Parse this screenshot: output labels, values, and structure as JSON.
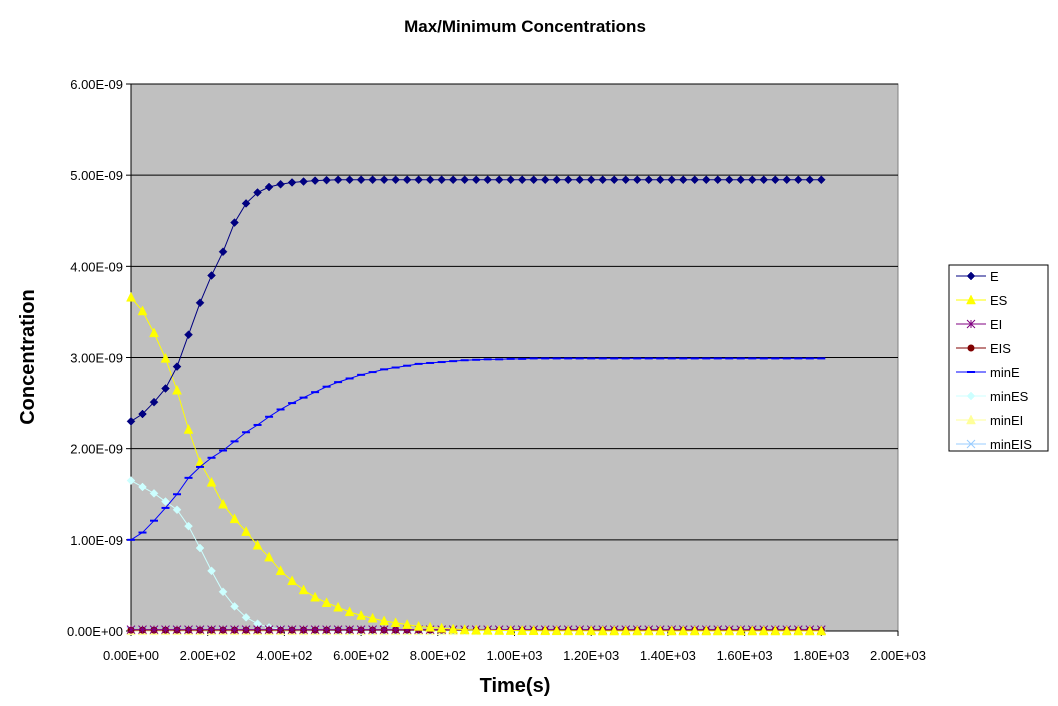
{
  "chart_data": {
    "type": "line",
    "title": "Max/Minimum Concentrations",
    "xlabel": "Time(s)",
    "ylabel": "Concentration",
    "xlim": [
      0,
      2000
    ],
    "ylim": [
      0,
      6e-09
    ],
    "x_ticks": [
      0,
      200,
      400,
      600,
      800,
      1000,
      1200,
      1400,
      1600,
      1800,
      2000
    ],
    "x_tick_labels": [
      "0.00E+00",
      "2.00E+02",
      "4.00E+02",
      "6.00E+02",
      "8.00E+02",
      "1.00E+03",
      "1.20E+03",
      "1.40E+03",
      "1.60E+03",
      "1.80E+03",
      "2.00E+03"
    ],
    "y_ticks": [
      0,
      1e-09,
      2e-09,
      3e-09,
      4e-09,
      5e-09,
      6e-09
    ],
    "y_tick_labels": [
      "0.00E+00",
      "1.00E-09",
      "2.00E-09",
      "3.00E-09",
      "4.00E-09",
      "5.00E-09",
      "6.00E-09"
    ],
    "grid": "horizontal",
    "legend_position": "right",
    "plot_background": "#C0C0C0",
    "x_step": 30,
    "x_count": 61,
    "series": [
      {
        "name": "E",
        "color": "#000080",
        "marker": "diamond",
        "values": [
          2.3e-09,
          2.38e-09,
          2.51e-09,
          2.66e-09,
          2.9e-09,
          3.25e-09,
          3.6e-09,
          3.9e-09,
          4.16e-09,
          4.48e-09,
          4.69e-09,
          4.81e-09,
          4.87e-09,
          4.9e-09,
          4.92e-09,
          4.93e-09,
          4.94e-09,
          4.945e-09,
          4.95e-09,
          4.95e-09,
          4.95e-09,
          4.95e-09,
          4.95e-09,
          4.95e-09,
          4.95e-09,
          4.95e-09,
          4.95e-09,
          4.95e-09,
          4.95e-09,
          4.95e-09,
          4.95e-09,
          4.95e-09,
          4.95e-09,
          4.95e-09,
          4.95e-09,
          4.95e-09,
          4.95e-09,
          4.95e-09,
          4.95e-09,
          4.95e-09,
          4.95e-09,
          4.95e-09,
          4.95e-09,
          4.95e-09,
          4.95e-09,
          4.95e-09,
          4.95e-09,
          4.95e-09,
          4.95e-09,
          4.95e-09,
          4.95e-09,
          4.95e-09,
          4.95e-09,
          4.95e-09,
          4.95e-09,
          4.95e-09,
          4.95e-09,
          4.95e-09,
          4.95e-09,
          4.95e-09,
          4.95e-09
        ]
      },
      {
        "name": "ES",
        "color": "#FFFF00",
        "marker": "triangle",
        "values": [
          3.66e-09,
          3.51e-09,
          3.27e-09,
          2.99e-09,
          2.64e-09,
          2.21e-09,
          1.85e-09,
          1.63e-09,
          1.39e-09,
          1.23e-09,
          1.09e-09,
          9.4e-10,
          8.1e-10,
          6.6e-10,
          5.5e-10,
          4.5e-10,
          3.7e-10,
          3.1e-10,
          2.6e-10,
          2.1e-10,
          1.7e-10,
          1.4e-10,
          1.1e-10,
          9e-11,
          7e-11,
          5e-11,
          4e-11,
          3e-11,
          2e-11,
          1.5e-11,
          1e-11,
          8e-12,
          6e-12,
          5e-12,
          4e-12,
          3e-12,
          2e-12,
          2e-12,
          1e-12,
          1e-12,
          1e-12,
          0,
          0,
          0,
          0,
          0,
          0,
          0,
          0,
          0,
          0,
          0,
          0,
          0,
          0,
          0,
          0,
          0,
          0,
          0,
          0
        ]
      },
      {
        "name": "EI",
        "color": "#800080",
        "marker": "star",
        "values": [
          1.5e-11,
          1.5e-11,
          1.5e-11,
          1.5e-11,
          1.5e-11,
          1.5e-11,
          1.5e-11,
          1.5e-11,
          1.5e-11,
          1.5e-11,
          1.5e-11,
          1.5e-11,
          1.5e-11,
          1.5e-11,
          1.5e-11,
          1.5e-11,
          1.5e-11,
          1.5e-11,
          1.5e-11,
          1.5e-11,
          1.5e-11,
          1.5e-11,
          1.5e-11,
          1.5e-11,
          1.5e-11,
          1.5e-11,
          1.5e-11,
          1.5e-11,
          1.5e-11,
          1.5e-11,
          1.5e-11,
          1.5e-11,
          1.5e-11,
          1.5e-11,
          1.5e-11,
          1.5e-11,
          1.5e-11,
          1.5e-11,
          1.5e-11,
          1.5e-11,
          1.5e-11,
          1.5e-11,
          1.5e-11,
          1.5e-11,
          1.5e-11,
          1.5e-11,
          1.5e-11,
          1.5e-11,
          1.5e-11,
          1.5e-11,
          1.5e-11,
          1.5e-11,
          1.5e-11,
          1.5e-11,
          1.5e-11,
          1.5e-11,
          1.5e-11,
          1.5e-11,
          1.5e-11,
          1.5e-11,
          1.5e-11
        ]
      },
      {
        "name": "EIS",
        "color": "#800000",
        "marker": "circle",
        "values": [
          1e-11,
          1e-11,
          1e-11,
          1e-11,
          1e-11,
          1e-11,
          1e-11,
          1e-11,
          1e-11,
          1e-11,
          1e-11,
          1e-11,
          1e-11,
          1e-11,
          1e-11,
          1e-11,
          1e-11,
          1e-11,
          1e-11,
          1e-11,
          1e-11,
          1e-11,
          1e-11,
          1e-11,
          1e-11,
          1e-11,
          1e-11,
          1e-11,
          1e-11,
          1e-11,
          1e-11,
          1e-11,
          1e-11,
          1e-11,
          1e-11,
          1e-11,
          1e-11,
          1e-11,
          1e-11,
          1e-11,
          1e-11,
          1e-11,
          1e-11,
          1e-11,
          1e-11,
          1e-11,
          1e-11,
          1e-11,
          1e-11,
          1e-11,
          1e-11,
          1e-11,
          1e-11,
          1e-11,
          1e-11,
          1e-11,
          1e-11,
          1e-11,
          1e-11,
          1e-11,
          1e-11
        ]
      },
      {
        "name": "minE",
        "color": "#0000FF",
        "marker": "dash",
        "values": [
          1e-09,
          1.08e-09,
          1.21e-09,
          1.35e-09,
          1.5e-09,
          1.68e-09,
          1.8e-09,
          1.9e-09,
          1.98e-09,
          2.08e-09,
          2.18e-09,
          2.26e-09,
          2.35e-09,
          2.43e-09,
          2.5e-09,
          2.56e-09,
          2.62e-09,
          2.68e-09,
          2.73e-09,
          2.77e-09,
          2.81e-09,
          2.84e-09,
          2.87e-09,
          2.89e-09,
          2.91e-09,
          2.93e-09,
          2.94e-09,
          2.95e-09,
          2.96e-09,
          2.97e-09,
          2.975e-09,
          2.98e-09,
          2.98e-09,
          2.985e-09,
          2.985e-09,
          2.99e-09,
          2.99e-09,
          2.99e-09,
          2.99e-09,
          2.99e-09,
          2.99e-09,
          2.99e-09,
          2.99e-09,
          2.99e-09,
          2.99e-09,
          2.99e-09,
          2.99e-09,
          2.99e-09,
          2.99e-09,
          2.99e-09,
          2.99e-09,
          2.99e-09,
          2.99e-09,
          2.99e-09,
          2.99e-09,
          2.99e-09,
          2.99e-09,
          2.99e-09,
          2.99e-09,
          2.99e-09,
          2.99e-09
        ]
      },
      {
        "name": "minES",
        "color": "#CCFFFF",
        "marker": "diamond",
        "values": [
          1.65e-09,
          1.58e-09,
          1.51e-09,
          1.42e-09,
          1.33e-09,
          1.15e-09,
          9.1e-10,
          6.6e-10,
          4.3e-10,
          2.7e-10,
          1.5e-10,
          8e-11,
          4e-11,
          2e-11,
          1e-11,
          5e-12,
          3e-12,
          1e-12,
          0,
          0,
          0,
          0,
          0,
          0,
          0,
          0,
          0,
          0,
          0,
          0,
          0,
          0,
          0,
          0,
          0,
          0,
          0,
          0,
          0,
          0,
          0,
          0,
          0,
          0,
          0,
          0,
          0,
          0,
          0,
          0,
          0,
          0,
          0,
          0,
          0,
          0,
          0,
          0,
          0,
          0,
          0
        ]
      },
      {
        "name": "minEI",
        "color": "#FFFF99",
        "marker": "triangle",
        "values": [
          2e-12,
          2e-12,
          2e-12,
          2e-12,
          2e-12,
          2e-12,
          2e-12,
          2e-12,
          2e-12,
          2e-12,
          2e-12,
          2e-12,
          2e-12,
          2e-12,
          2e-12,
          2e-12,
          2e-12,
          2e-12,
          2e-12,
          2e-12,
          2e-12,
          2e-12,
          2e-12,
          2e-12,
          2e-12,
          2e-12,
          2e-12,
          2e-12,
          2e-12,
          2e-12,
          2e-12,
          2e-12,
          2e-12,
          2e-12,
          2e-12,
          2e-12,
          2e-12,
          2e-12,
          2e-12,
          2e-12,
          2e-12,
          2e-12,
          2e-12,
          2e-12,
          2e-12,
          2e-12,
          2e-12,
          2e-12,
          2e-12,
          2e-12,
          2e-12,
          2e-12,
          2e-12,
          2e-12,
          2e-12,
          2e-12,
          2e-12,
          2e-12,
          2e-12,
          2e-12,
          2e-12
        ]
      },
      {
        "name": "minEIS",
        "color": "#99CCFF",
        "marker": "x",
        "values": [
          1e-12,
          1e-12,
          1e-12,
          1e-12,
          1e-12,
          1e-12,
          1e-12,
          1e-12,
          1e-12,
          1e-12,
          1e-12,
          1e-12,
          1e-12,
          1e-12,
          1e-12,
          1e-12,
          1e-12,
          1e-12,
          1e-12,
          1e-12,
          1e-12,
          1e-12,
          1e-12,
          1e-12,
          1e-12,
          1e-12,
          1e-12,
          1e-12,
          1e-12,
          1e-12,
          1e-12,
          1e-12,
          1e-12,
          1e-12,
          1e-12,
          1e-12,
          1e-12,
          1e-12,
          1e-12,
          1e-12,
          1e-12,
          1e-12,
          1e-12,
          1e-12,
          1e-12,
          1e-12,
          1e-12,
          1e-12,
          1e-12,
          1e-12,
          1e-12,
          1e-12,
          1e-12,
          1e-12,
          1e-12,
          1e-12,
          1e-12,
          1e-12,
          1e-12,
          1e-12,
          1e-12
        ]
      }
    ]
  }
}
